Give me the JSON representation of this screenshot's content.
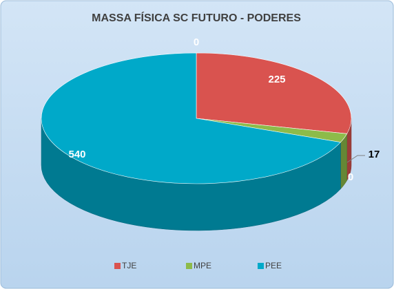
{
  "chart_data": {
    "type": "pie3d",
    "title": "MASSA FÍSICA SC FUTURO - PODERES",
    "categories": [
      null,
      "TJE",
      "MPE",
      null,
      "PEE"
    ],
    "values": [
      0,
      225,
      17,
      0,
      540
    ],
    "colors": [
      "#a8c8e8",
      "#d9534f",
      "#8dbb4a",
      "#a8c8e8",
      "#00a9c9"
    ],
    "legend": "bottom"
  }
}
